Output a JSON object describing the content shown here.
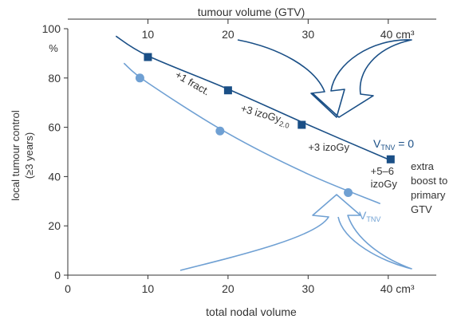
{
  "chart_data": {
    "type": "scatter",
    "top_axis": {
      "label": "tumour volume (GTV)",
      "ticks": [
        {
          "value": 10,
          "label": "10"
        },
        {
          "value": 20,
          "label": "20"
        },
        {
          "value": 30,
          "label": "30"
        },
        {
          "value": 40,
          "label": "40 cm³"
        }
      ]
    },
    "x_axis": {
      "label": "total nodal volume",
      "range": [
        0,
        45
      ],
      "ticks": [
        {
          "value": 0,
          "label": "0"
        },
        {
          "value": 10,
          "label": "10"
        },
        {
          "value": 20,
          "label": "20"
        },
        {
          "value": 30,
          "label": "30"
        },
        {
          "value": 40,
          "label": "40 cm³"
        }
      ]
    },
    "y_axis": {
      "label_lines": [
        "local tumour control",
        "(≥3 years)"
      ],
      "unit": "%",
      "range": [
        0,
        100
      ],
      "ticks": [
        {
          "value": 0,
          "label": "0"
        },
        {
          "value": 20,
          "label": "20"
        },
        {
          "value": 40,
          "label": "40"
        },
        {
          "value": 60,
          "label": "60"
        },
        {
          "value": 80,
          "label": "80"
        },
        {
          "value": 100,
          "label": "100"
        }
      ]
    },
    "series": [
      {
        "label_main": "V",
        "label_sub": "TNV",
        "label_suffix": " = 0",
        "color": "#1a4f86",
        "marker": "square",
        "points": [
          {
            "x": 10,
            "y": 88.5
          },
          {
            "x": 20,
            "y": 75
          },
          {
            "x": 29.2,
            "y": 61
          },
          {
            "x": 40.3,
            "y": 47
          }
        ],
        "curve": [
          [
            6,
            97
          ],
          [
            10,
            89
          ],
          [
            20,
            75.5
          ],
          [
            30,
            61
          ],
          [
            40,
            47
          ]
        ]
      },
      {
        "label_main": "V",
        "label_sub": "TNV",
        "label_suffix": "",
        "color": "#6fa0d3",
        "marker": "circle",
        "points": [
          {
            "x": 9,
            "y": 80
          },
          {
            "x": 19,
            "y": 58.5
          },
          {
            "x": 35,
            "y": 33.5
          }
        ],
        "curve": [
          [
            7,
            86
          ],
          [
            10,
            78
          ],
          [
            20,
            57.5
          ],
          [
            30,
            41
          ],
          [
            39,
            29
          ]
        ]
      }
    ],
    "annotations": [
      {
        "text": "+1 fract.",
        "sub": "",
        "x": 13.3,
        "y": 80.5,
        "rotate": 30
      },
      {
        "text": "+3 izoGy",
        "sub": "2.0",
        "x": 21.5,
        "y": 66.5,
        "rotate": 16
      },
      {
        "text": "+3 izoGy",
        "sub": "",
        "x": 30,
        "y": 50.5,
        "rotate": 0
      },
      {
        "text": "+5–6",
        "sub": "",
        "x": 37.8,
        "y": 40.8,
        "rotate": 0
      },
      {
        "text": "izoGy",
        "sub": "",
        "x": 37.8,
        "y": 35.6,
        "rotate": 0
      }
    ],
    "side_note_lines": [
      "extra",
      "boost to",
      "primary",
      "GTV"
    ],
    "arrows": [
      {
        "direction": "down",
        "color": "#1a4f86"
      },
      {
        "direction": "up",
        "color": "#6fa0d3"
      }
    ]
  }
}
